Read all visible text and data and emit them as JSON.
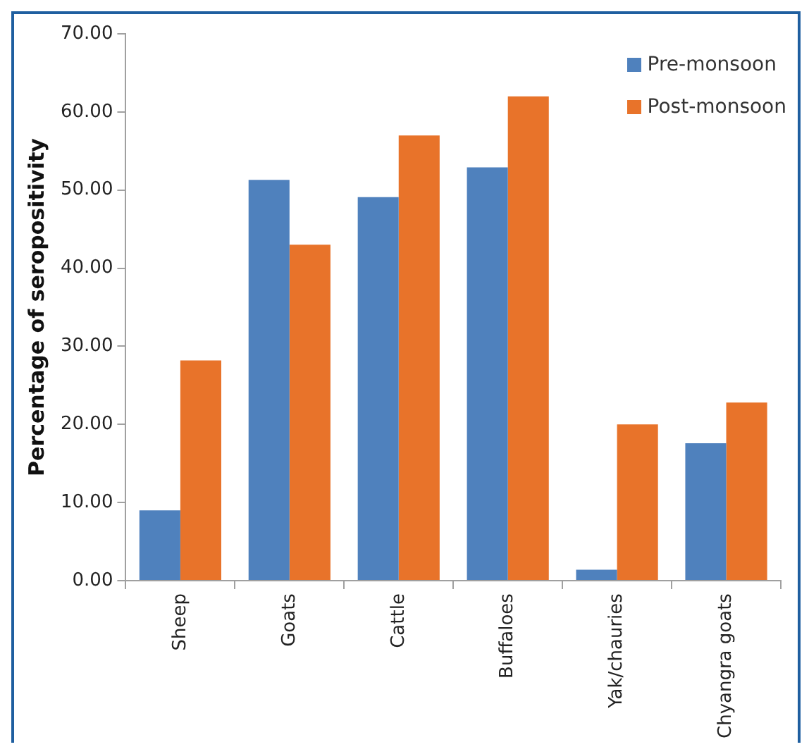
{
  "chart_data": {
    "type": "bar",
    "ylabel": "Percentage of seropositivity",
    "categories": [
      "Sheep",
      "Goats",
      "Cattle",
      "Buffaloes",
      "Yak/chauries",
      "Chyangra goats"
    ],
    "series": [
      {
        "name": "Pre-monsoon",
        "color": "#4f81bd",
        "values": [
          9.0,
          51.3,
          49.1,
          52.9,
          1.4,
          17.6
        ]
      },
      {
        "name": "Post-monsoon",
        "color": "#e8732a",
        "values": [
          28.2,
          43.0,
          57.0,
          62.0,
          20.0,
          22.8
        ]
      }
    ],
    "ylim": [
      0,
      70
    ],
    "yticks": [
      {
        "value": 0,
        "label": "0.00"
      },
      {
        "value": 10,
        "label": "10.00"
      },
      {
        "value": 20,
        "label": "20.00"
      },
      {
        "value": 30,
        "label": "30.00"
      },
      {
        "value": 40,
        "label": "40.00"
      },
      {
        "value": 50,
        "label": "50.00"
      },
      {
        "value": 60,
        "label": "60.00"
      },
      {
        "value": 70,
        "label": "70.00"
      }
    ],
    "grid": false,
    "legend": "top right"
  }
}
